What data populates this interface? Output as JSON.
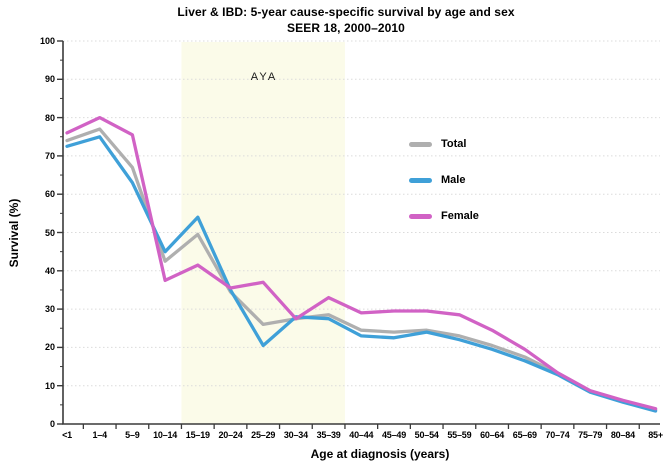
{
  "title": "Liver & IBD: 5-year cause-specific survival by age and sex",
  "subtitle": "SEER 18, 2000–2010",
  "chart_data": {
    "type": "line",
    "title": "Liver & IBD: 5-year cause-specific survival by age and sex",
    "subtitle": "SEER 18, 2000–2010",
    "xlabel": "Age at diagnosis (years)",
    "ylabel": "Survival (%)",
    "ylim": [
      0,
      100
    ],
    "y_major_step": 10,
    "y_minor_step": 5,
    "grid": "horizontal dotted lines at every 10",
    "legend_position": "inside upper right",
    "categories": [
      "<1",
      "1–4",
      "5–9",
      "10–14",
      "15–19",
      "20–24",
      "25–29",
      "30–34",
      "35–39",
      "40–44",
      "45–49",
      "50–54",
      "55–59",
      "60–64",
      "65–69",
      "70–74",
      "75–79",
      "80–84",
      "85+"
    ],
    "series": [
      {
        "name": "Total",
        "color": "#AFAFAF",
        "values": [
          74,
          77,
          67,
          42.5,
          49.5,
          34.5,
          26,
          27.5,
          28.5,
          24.5,
          24,
          24.5,
          23,
          20.5,
          17.5,
          13.2,
          8.5,
          6,
          3.7
        ]
      },
      {
        "name": "Male",
        "color": "#3FA0D8",
        "values": [
          72.5,
          75,
          63,
          45,
          54,
          35,
          20.5,
          28,
          27.5,
          23,
          22.5,
          24,
          22,
          19.5,
          16.5,
          12.9,
          8.3,
          5.7,
          3.4
        ]
      },
      {
        "name": "Female",
        "color": "#D162C5",
        "values": [
          76,
          80,
          75.5,
          37.5,
          41.5,
          35.5,
          37,
          27.5,
          33,
          29,
          29.5,
          29.5,
          28.5,
          24.5,
          19.5,
          13.4,
          8.7,
          6.2,
          4
        ]
      }
    ],
    "highlight_band": {
      "label": "AYA",
      "from_category": "15–19",
      "to_category": "35–39",
      "color": "#FBFBE9"
    }
  }
}
